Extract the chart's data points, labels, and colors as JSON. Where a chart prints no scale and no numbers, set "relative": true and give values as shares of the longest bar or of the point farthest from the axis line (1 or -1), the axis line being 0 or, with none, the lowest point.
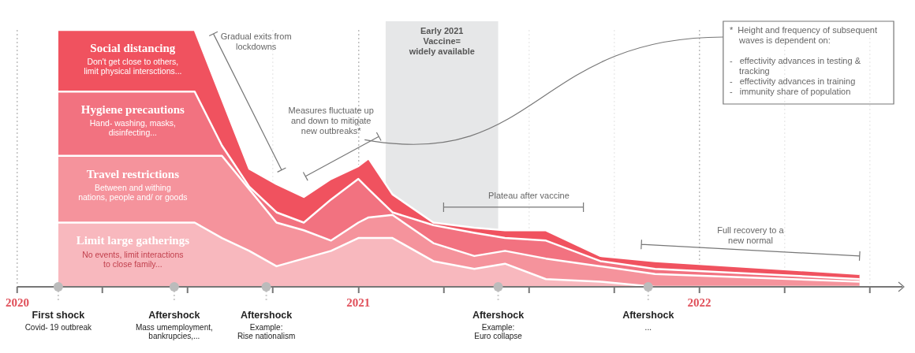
{
  "chart_data": {
    "type": "area",
    "stacked": true,
    "relative": true,
    "grid": "x",
    "x": [
      2020.12,
      2020.52,
      2020.6,
      2020.68,
      2020.76,
      2020.84,
      2020.92,
      2021.0,
      2021.03,
      2021.1,
      2021.22,
      2021.34,
      2021.43,
      2021.55,
      2021.71,
      2021.87,
      2022.47
    ],
    "xlim": [
      2020,
      2022.6
    ],
    "xticks": [
      2020,
      {
        "value": 2020.25,
        "label": null
      },
      {
        "value": 2020.5,
        "label": null
      },
      {
        "value": 2020.75,
        "label": null
      },
      2021,
      {
        "value": 2021.25,
        "label": null
      },
      {
        "value": 2021.5,
        "label": null
      },
      {
        "value": 2021.75,
        "label": null
      },
      2022,
      {
        "value": 2022.25,
        "label": null
      },
      {
        "value": 2022.5,
        "label": null
      }
    ],
    "series": [
      {
        "name": "Limit large gatherings",
        "color": "#f8b8be",
        "values": [
          0.25,
          0.25,
          0.19,
          0.14,
          0.08,
          0.11,
          0.14,
          0.19,
          0.19,
          0.19,
          0.1,
          0.07,
          0.09,
          0.03,
          0.02,
          0,
          0
        ]
      },
      {
        "name": "Travel restrictions",
        "color": "#f5939c",
        "values": [
          0.26,
          0.26,
          0.32,
          0.24,
          0.17,
          0.11,
          0.04,
          0.06,
          0.08,
          0.09,
          0.07,
          0.05,
          0.05,
          0.08,
          0.06,
          0.05,
          0.02
        ]
      },
      {
        "name": "Hygiene precautions",
        "color": "#f27280",
        "values": [
          0.25,
          0.25,
          0.04,
          0.01,
          0.04,
          0.03,
          0.16,
          0.17,
          0.11,
          0.01,
          0.07,
          0.09,
          0.05,
          0.07,
          0.02,
          0.02,
          0.01
        ]
      },
      {
        "name": "Social distancing",
        "color": "#f0525f",
        "values": [
          0.24,
          0.24,
          0.18,
          0.07,
          0.11,
          0.1,
          0.08,
          0.05,
          0.12,
          0.07,
          0.01,
          0.02,
          0.03,
          0.04,
          0.02,
          0.03,
          0.02
        ]
      }
    ],
    "bands": [
      {
        "axis": "x",
        "from": 2021.08,
        "to": 2021.41,
        "label": "Early 2021\nVaccine=\nwidely available",
        "color": "#e6e7e8"
      }
    ],
    "annotations": [
      "Gradual exits from\nlockdowns",
      "Measures fluctuate up\nand down to mitigate\nnew outbreaks*",
      "Plateau after vaccine",
      "Full recovery to a\nnew normal",
      "*  Height and frequency of subsequent\n    waves is dependent on:\n\n-   effectivity advances in testing &\n    tracking\n-   effectivity advances in training\n-   immunity share of population",
      "No events, limit interactions\nto close family...",
      "Between and withing\nnations, people and/ or goods",
      "Hand- washing, masks,\ndisinfecting...",
      "Don't get close to others,\nlimit physical intersctions...",
      {
        "text": "First shock\nCovid- 19 outbreak",
        "x": 2020.12,
        "y": 0
      },
      {
        "text": "Aftershock\nMass umemployment,\nbankrupcies,...",
        "x": 2020.46,
        "y": 0
      },
      {
        "text": "Aftershock\nExample:\nRise nationalism",
        "x": 2020.73,
        "y": 0
      },
      {
        "text": "Aftershock\nExample:\nEuro collapse",
        "x": 2021.41,
        "y": 0
      },
      {
        "text": "Aftershock\n...",
        "x": 2021.85,
        "y": 0
      }
    ]
  }
}
